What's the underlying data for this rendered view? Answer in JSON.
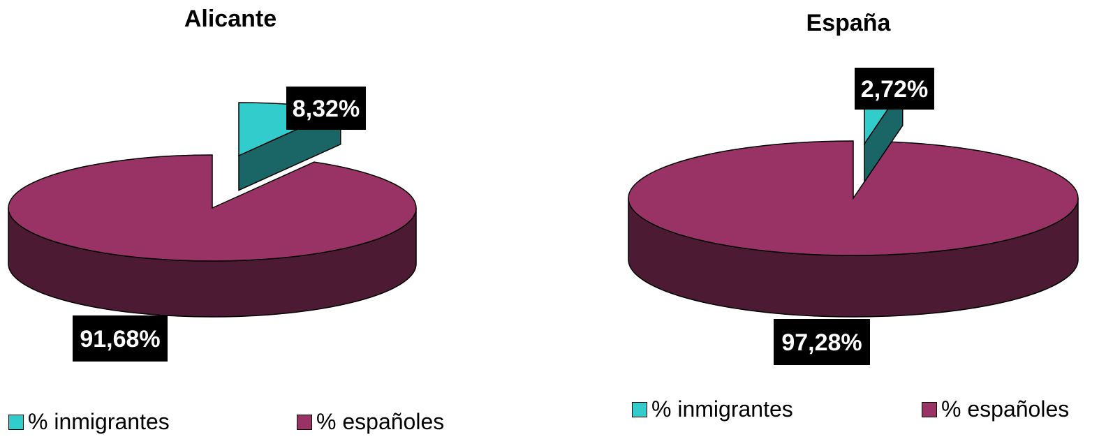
{
  "colors": {
    "immigrants": "#33CCCC",
    "immigrants_side": "#1A6666",
    "spaniards": "#993366",
    "spaniards_side": "#4D1A33",
    "label_bg": "#000000",
    "label_text": "#FFFFFF"
  },
  "chart_data": [
    {
      "type": "pie",
      "style": "3d-exploded",
      "title": "Alicante",
      "series": [
        {
          "name": "% inmigrantes",
          "value": 8.32,
          "label": "8,32%",
          "color": "#33CCCC"
        },
        {
          "name": "% españoles",
          "value": 91.68,
          "label": "91,68%",
          "color": "#993366"
        }
      ],
      "legend": "bottom"
    },
    {
      "type": "pie",
      "style": "3d-exploded",
      "title": "España",
      "series": [
        {
          "name": "% inmigrantes",
          "value": 2.72,
          "label": "2,72%",
          "color": "#33CCCC"
        },
        {
          "name": "% españoles",
          "value": 97.28,
          "label": "97,28%",
          "color": "#993366"
        }
      ],
      "legend": "bottom"
    }
  ]
}
